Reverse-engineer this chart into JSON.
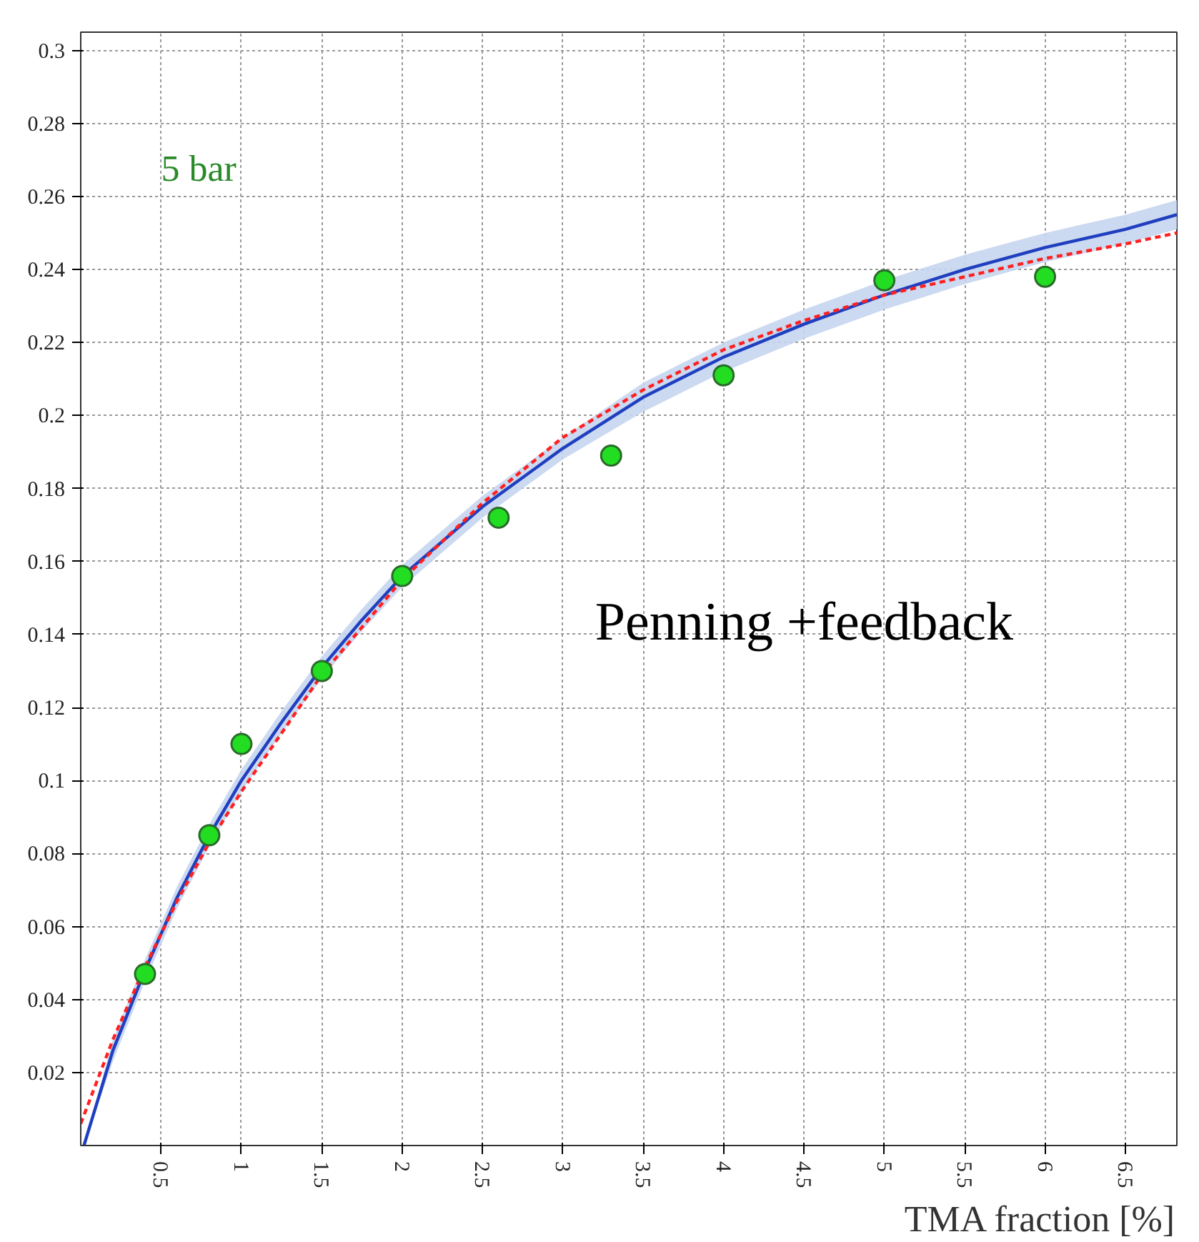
{
  "chart_data": {
    "type": "scatter",
    "xlabel": "TMA fraction [%]",
    "annotations": [
      "5 bar",
      "Penning +feedback"
    ],
    "xlim": [
      0,
      6.82
    ],
    "ylim": [
      0,
      0.305
    ],
    "xticks": [
      0.5,
      1,
      1.5,
      2,
      2.5,
      3,
      3.5,
      4,
      4.5,
      5,
      5.5,
      6,
      6.5
    ],
    "yticks": [
      0.02,
      0.04,
      0.06,
      0.08,
      0.1,
      0.12,
      0.14,
      0.16,
      0.18,
      0.2,
      0.22,
      0.24,
      0.26,
      0.28,
      0.3
    ],
    "grid": true,
    "series": [
      {
        "type": "line",
        "color": "#1f3fbf",
        "line_style": "solid",
        "x": [
          0.02,
          0.2,
          0.4,
          0.6,
          0.8,
          1,
          1.25,
          1.5,
          1.75,
          2,
          2.5,
          3,
          3.5,
          4,
          4.5,
          5,
          5.5,
          6,
          6.5,
          6.82
        ],
        "values": [
          0.0,
          0.026,
          0.048,
          0.068,
          0.085,
          0.1,
          0.116,
          0.131,
          0.144,
          0.156,
          0.175,
          0.191,
          0.205,
          0.216,
          0.225,
          0.233,
          0.24,
          0.246,
          0.251,
          0.255
        ],
        "lower": [
          0.0,
          0.023,
          0.045,
          0.065,
          0.082,
          0.097,
          0.113,
          0.128,
          0.141,
          0.153,
          0.172,
          0.188,
          0.201,
          0.212,
          0.221,
          0.229,
          0.236,
          0.242,
          0.247,
          0.251
        ],
        "upper": [
          0.0,
          0.029,
          0.051,
          0.071,
          0.088,
          0.103,
          0.119,
          0.134,
          0.147,
          0.159,
          0.178,
          0.194,
          0.209,
          0.22,
          0.229,
          0.237,
          0.244,
          0.25,
          0.255,
          0.259
        ]
      },
      {
        "type": "line",
        "color": "#ff2020",
        "line_style": "dashed",
        "x": [
          0,
          0.2,
          0.4,
          0.6,
          0.8,
          1,
          1.5,
          2,
          2.5,
          3,
          3.5,
          4,
          4.5,
          5,
          5.5,
          6,
          6.5,
          6.82
        ],
        "values": [
          0.006,
          0.029,
          0.049,
          0.067,
          0.083,
          0.097,
          0.129,
          0.155,
          0.176,
          0.194,
          0.207,
          0.218,
          0.226,
          0.233,
          0.238,
          0.243,
          0.247,
          0.25
        ]
      },
      {
        "color": "#22dd22",
        "marker": "circle",
        "x": [
          0.4,
          0.8,
          1,
          1.5,
          2,
          2.6,
          3.3,
          4,
          5,
          6
        ],
        "values": [
          0.047,
          0.085,
          0.11,
          0.13,
          0.156,
          0.172,
          0.189,
          0.211,
          0.237,
          0.238
        ]
      }
    ]
  }
}
